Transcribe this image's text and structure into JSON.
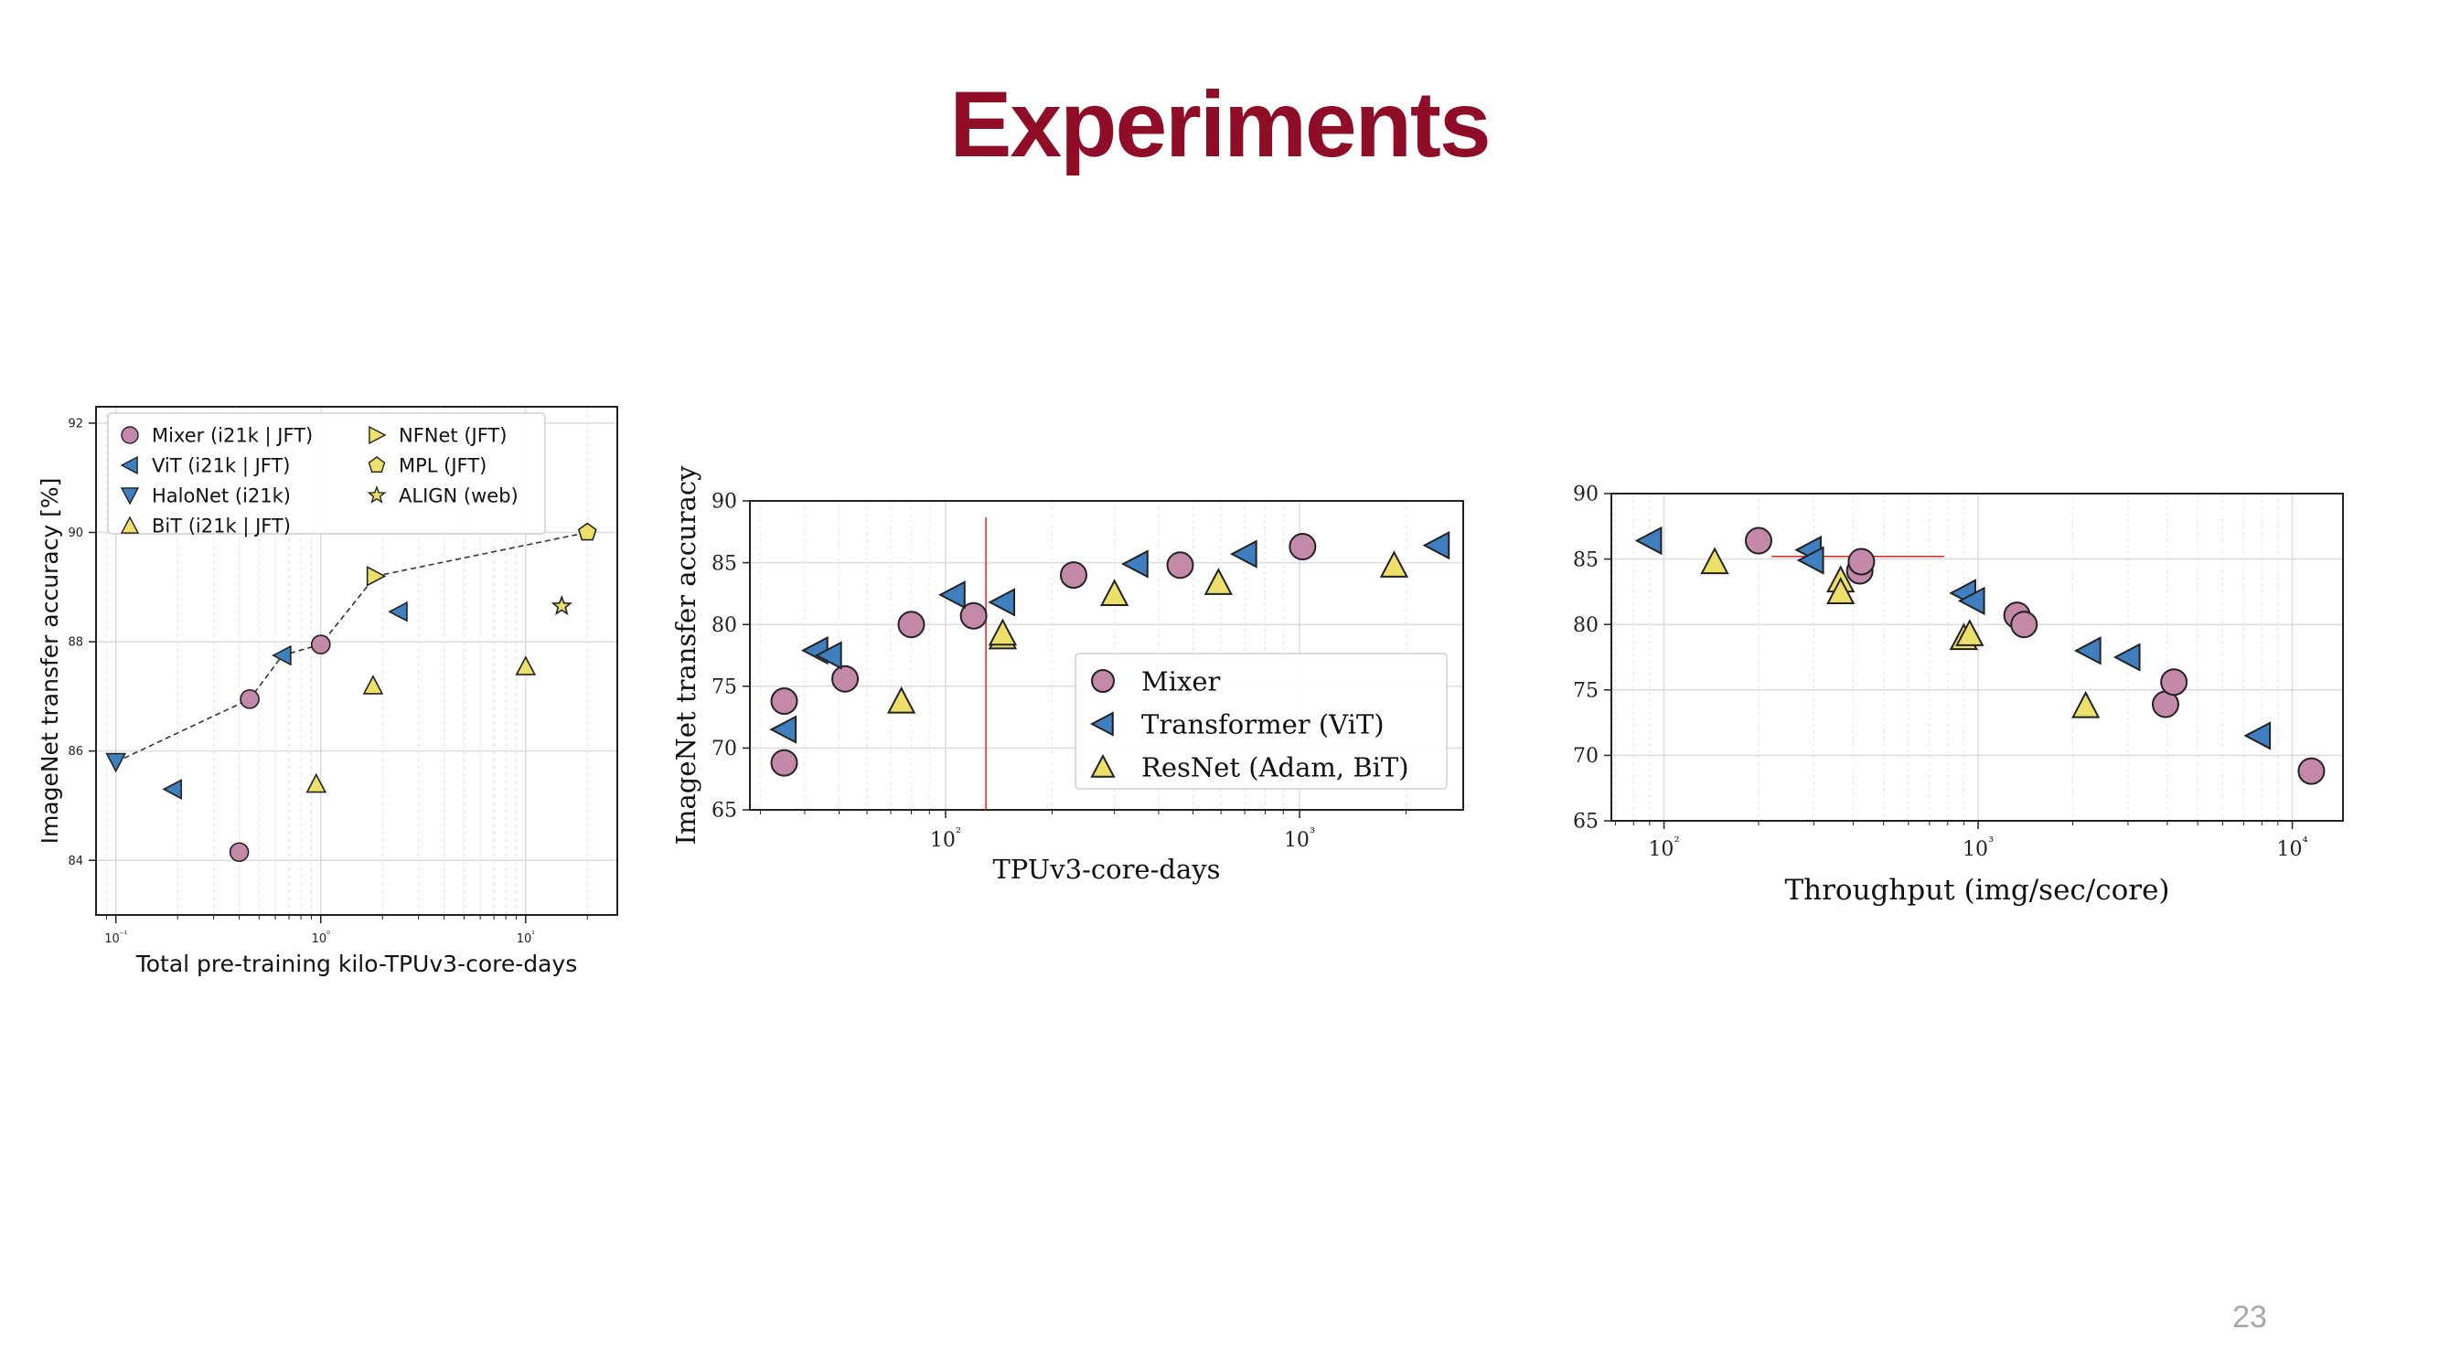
{
  "title": "Experiments",
  "page_number": "23",
  "colors": {
    "title": "#8f0d26",
    "mixer": "#c488a8",
    "vit": "#3f7fbf",
    "resnet": "#ecdf6a",
    "red_line": "#e8221f"
  },
  "chart_data": [
    {
      "type": "scatter",
      "title": "",
      "xlabel": "Total pre-training kilo-TPUv3-core-days",
      "ylabel": "ImageNet transfer accuracy [%]",
      "xscale": "log",
      "xlim": [
        0.08,
        28
      ],
      "ylim": [
        83.0,
        92.3
      ],
      "yticks": [
        84,
        86,
        88,
        90,
        92
      ],
      "xticks": [
        0.1,
        1,
        10
      ],
      "xtick_labels": [
        "10⁻¹",
        "10⁰",
        "10¹"
      ],
      "grid": true,
      "legend_position": "top-left",
      "frontier": [
        [
          0.1,
          85.8
        ],
        [
          0.45,
          86.95
        ],
        [
          0.65,
          87.75
        ],
        [
          1.0,
          87.95
        ],
        [
          1.85,
          89.2
        ],
        [
          20.0,
          90.0
        ]
      ],
      "series": [
        {
          "name": "Mixer (i21k | JFT)",
          "marker": "circle",
          "color": "#c488a8",
          "points": [
            [
              0.4,
              84.15
            ],
            [
              0.45,
              86.95
            ],
            [
              1.0,
              87.95
            ]
          ]
        },
        {
          "name": "ViT (i21k | JFT)",
          "marker": "triangle-left",
          "color": "#3f7fbf",
          "points": [
            [
              0.19,
              85.3
            ],
            [
              0.65,
              87.75
            ],
            [
              2.4,
              88.55
            ]
          ]
        },
        {
          "name": "HaloNet (i21k)",
          "marker": "triangle-down",
          "color": "#3f7fbf",
          "points": [
            [
              0.1,
              85.8
            ]
          ]
        },
        {
          "name": "BiT (i21k | JFT)",
          "marker": "triangle-up",
          "color": "#ecdf6a",
          "points": [
            [
              0.95,
              85.4
            ],
            [
              1.8,
              87.2
            ],
            [
              10.0,
              87.55
            ]
          ]
        },
        {
          "name": "NFNet (JFT)",
          "marker": "triangle-right",
          "color": "#ecdf6a",
          "points": [
            [
              1.85,
              89.2
            ]
          ]
        },
        {
          "name": "MPL (JFT)",
          "marker": "pentagon",
          "color": "#ecdf6a",
          "points": [
            [
              20.0,
              90.0
            ]
          ]
        },
        {
          "name": "ALIGN (web)",
          "marker": "star",
          "color": "#ecdf6a",
          "points": [
            [
              15.0,
              88.65
            ]
          ]
        }
      ]
    },
    {
      "type": "scatter",
      "title": "",
      "xlabel": "TPUv3-core-days",
      "ylabel": "ImageNet transfer accuracy",
      "xscale": "log",
      "xlim": [
        28,
        2900
      ],
      "ylim": [
        65,
        90
      ],
      "yticks": [
        65,
        70,
        75,
        80,
        85,
        90
      ],
      "xticks": [
        100,
        1000
      ],
      "xtick_labels": [
        "10²",
        "10³"
      ],
      "grid": true,
      "legend_position": "bottom-right",
      "vline": 130,
      "series": [
        {
          "name": "Mixer",
          "marker": "circle",
          "color": "#c488a8",
          "points": [
            [
              35,
              68.8
            ],
            [
              35,
              73.8
            ],
            [
              52,
              75.6
            ],
            [
              80,
              80.0
            ],
            [
              120,
              80.7
            ],
            [
              230,
              84.0
            ],
            [
              460,
              84.8
            ],
            [
              1020,
              86.3
            ]
          ]
        },
        {
          "name": "Transformer (ViT)",
          "marker": "triangle-left",
          "color": "#3f7fbf",
          "points": [
            [
              35,
              71.5
            ],
            [
              43,
              77.9
            ],
            [
              47,
              77.5
            ],
            [
              105,
              82.4
            ],
            [
              145,
              81.8
            ],
            [
              345,
              84.9
            ],
            [
              700,
              85.7
            ],
            [
              2450,
              86.4
            ]
          ]
        },
        {
          "name": "ResNet (Adam, BiT)",
          "marker": "triangle-up",
          "color": "#ecdf6a",
          "points": [
            [
              75,
              73.8
            ],
            [
              145,
              79.0
            ],
            [
              145,
              79.3
            ],
            [
              300,
              82.5
            ],
            [
              590,
              83.4
            ],
            [
              1850,
              84.8
            ]
          ]
        }
      ]
    },
    {
      "type": "scatter",
      "title": "",
      "xlabel": "Throughput (img/sec/core)",
      "ylabel": "",
      "xscale": "log",
      "xlim": [
        68,
        14500
      ],
      "ylim": [
        65,
        90
      ],
      "yticks": [
        65,
        70,
        75,
        80,
        85,
        90
      ],
      "xticks": [
        100,
        1000,
        10000
      ],
      "xtick_labels": [
        "10²",
        "10³",
        "10⁴"
      ],
      "grid": true,
      "hline": {
        "y": 85.2,
        "x_from": 220,
        "x_to": 780
      },
      "series": [
        {
          "name": "Mixer",
          "marker": "circle",
          "color": "#c488a8",
          "points": [
            [
              200,
              86.4
            ],
            [
              420,
              84.1
            ],
            [
              425,
              84.8
            ],
            [
              1330,
              80.7
            ],
            [
              1400,
              80.0
            ],
            [
              3950,
              73.9
            ],
            [
              4200,
              75.6
            ],
            [
              11500,
              68.8
            ]
          ]
        },
        {
          "name": "Transformer (ViT)",
          "marker": "triangle-left",
          "color": "#3f7fbf",
          "points": [
            [
              90,
              86.4
            ],
            [
              290,
              85.7
            ],
            [
              295,
              84.9
            ],
            [
              900,
              82.4
            ],
            [
              960,
              81.8
            ],
            [
              2250,
              78.0
            ],
            [
              3000,
              77.5
            ],
            [
              7800,
              71.5
            ]
          ]
        },
        {
          "name": "ResNet (Adam, BiT)",
          "marker": "triangle-up",
          "color": "#ecdf6a",
          "points": [
            [
              145,
              84.8
            ],
            [
              365,
              83.4
            ],
            [
              365,
              82.5
            ],
            [
              900,
              79.0
            ],
            [
              940,
              79.3
            ],
            [
              2200,
              73.8
            ]
          ]
        }
      ]
    }
  ]
}
